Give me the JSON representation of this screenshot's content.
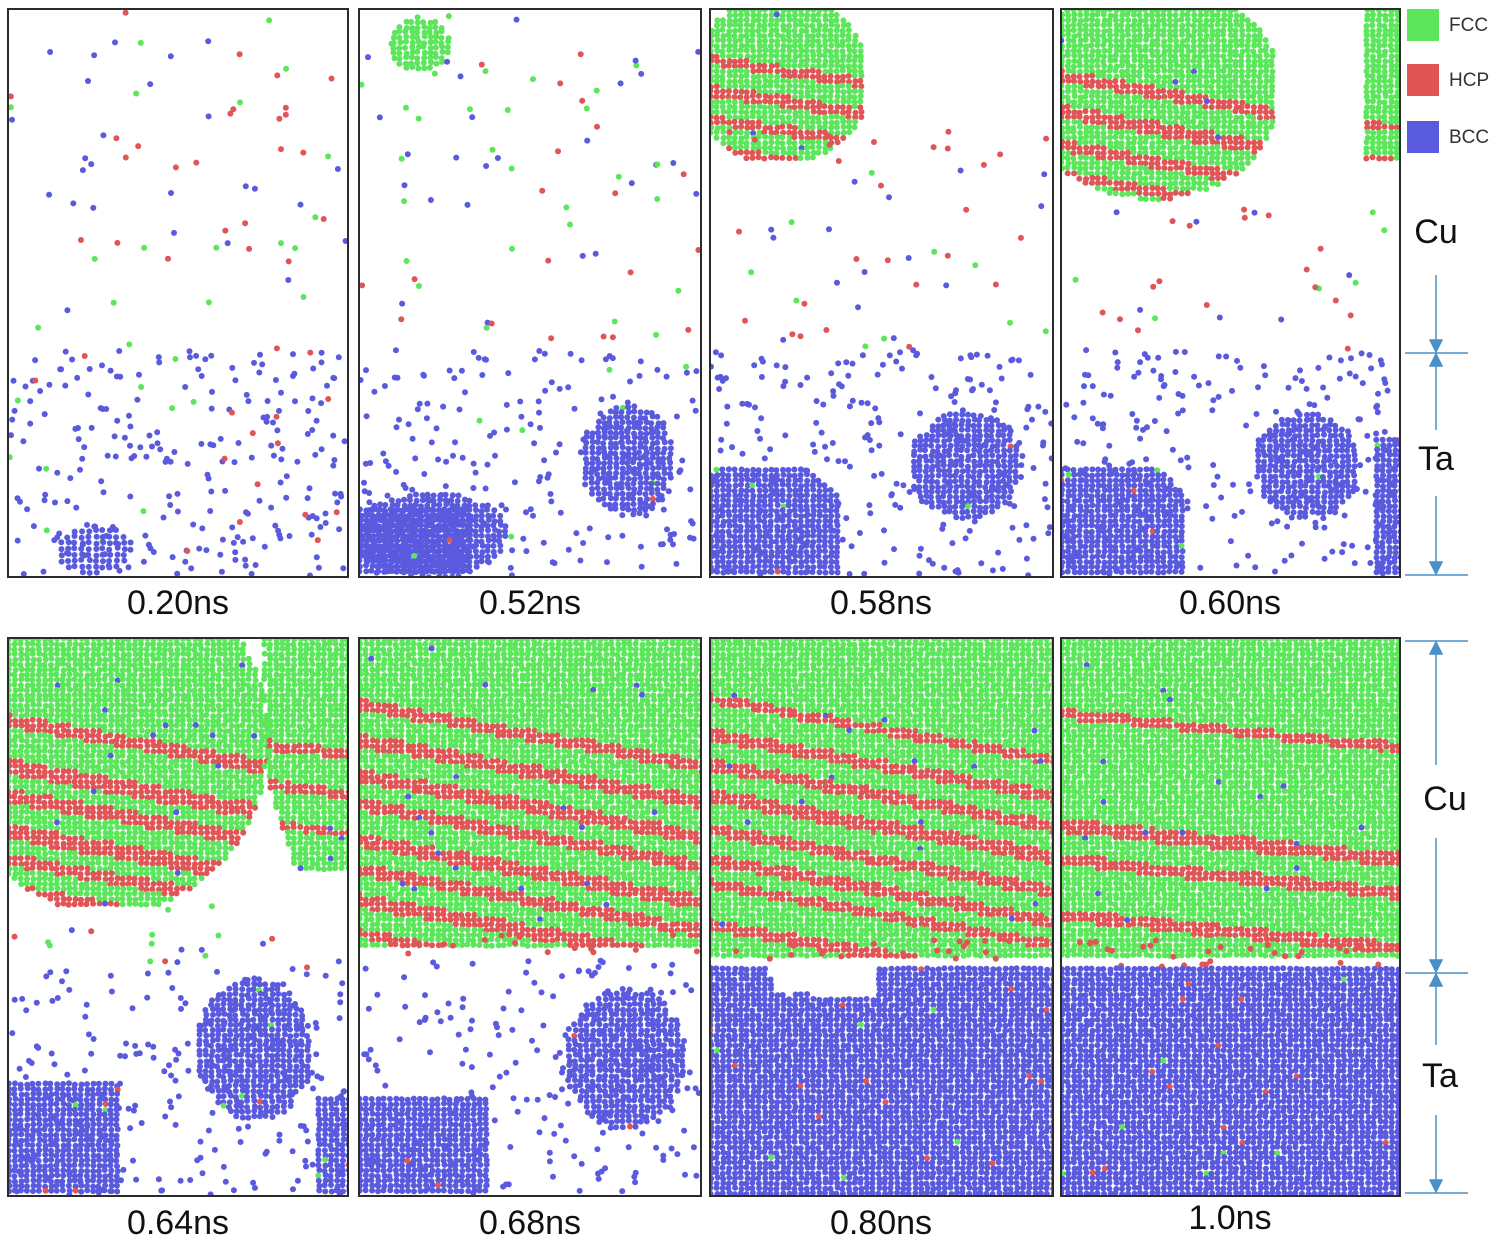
{
  "legend": [
    {
      "label": "FCC",
      "color": "#5ce65c"
    },
    {
      "label": "HCP",
      "color": "#e05555"
    },
    {
      "label": "BCC",
      "color": "#5a5adf"
    }
  ],
  "colors": {
    "fcc": "#5ce65c",
    "hcp": "#e05555",
    "bcc": "#5a5adf",
    "arrow": "#4a90c8",
    "frame": "#2b2b2b"
  },
  "regions": {
    "top": {
      "cu": "Cu",
      "ta": "Ta"
    },
    "bottom": {
      "cu": "Cu",
      "ta": "Ta"
    }
  },
  "panels": [
    {
      "time": "0.20ns"
    },
    {
      "time": "0.52ns"
    },
    {
      "time": "0.58ns"
    },
    {
      "time": "0.60ns"
    },
    {
      "time": "0.64ns"
    },
    {
      "time": "0.68ns"
    },
    {
      "time": "0.80ns"
    },
    {
      "time": "1.0ns"
    }
  ]
}
